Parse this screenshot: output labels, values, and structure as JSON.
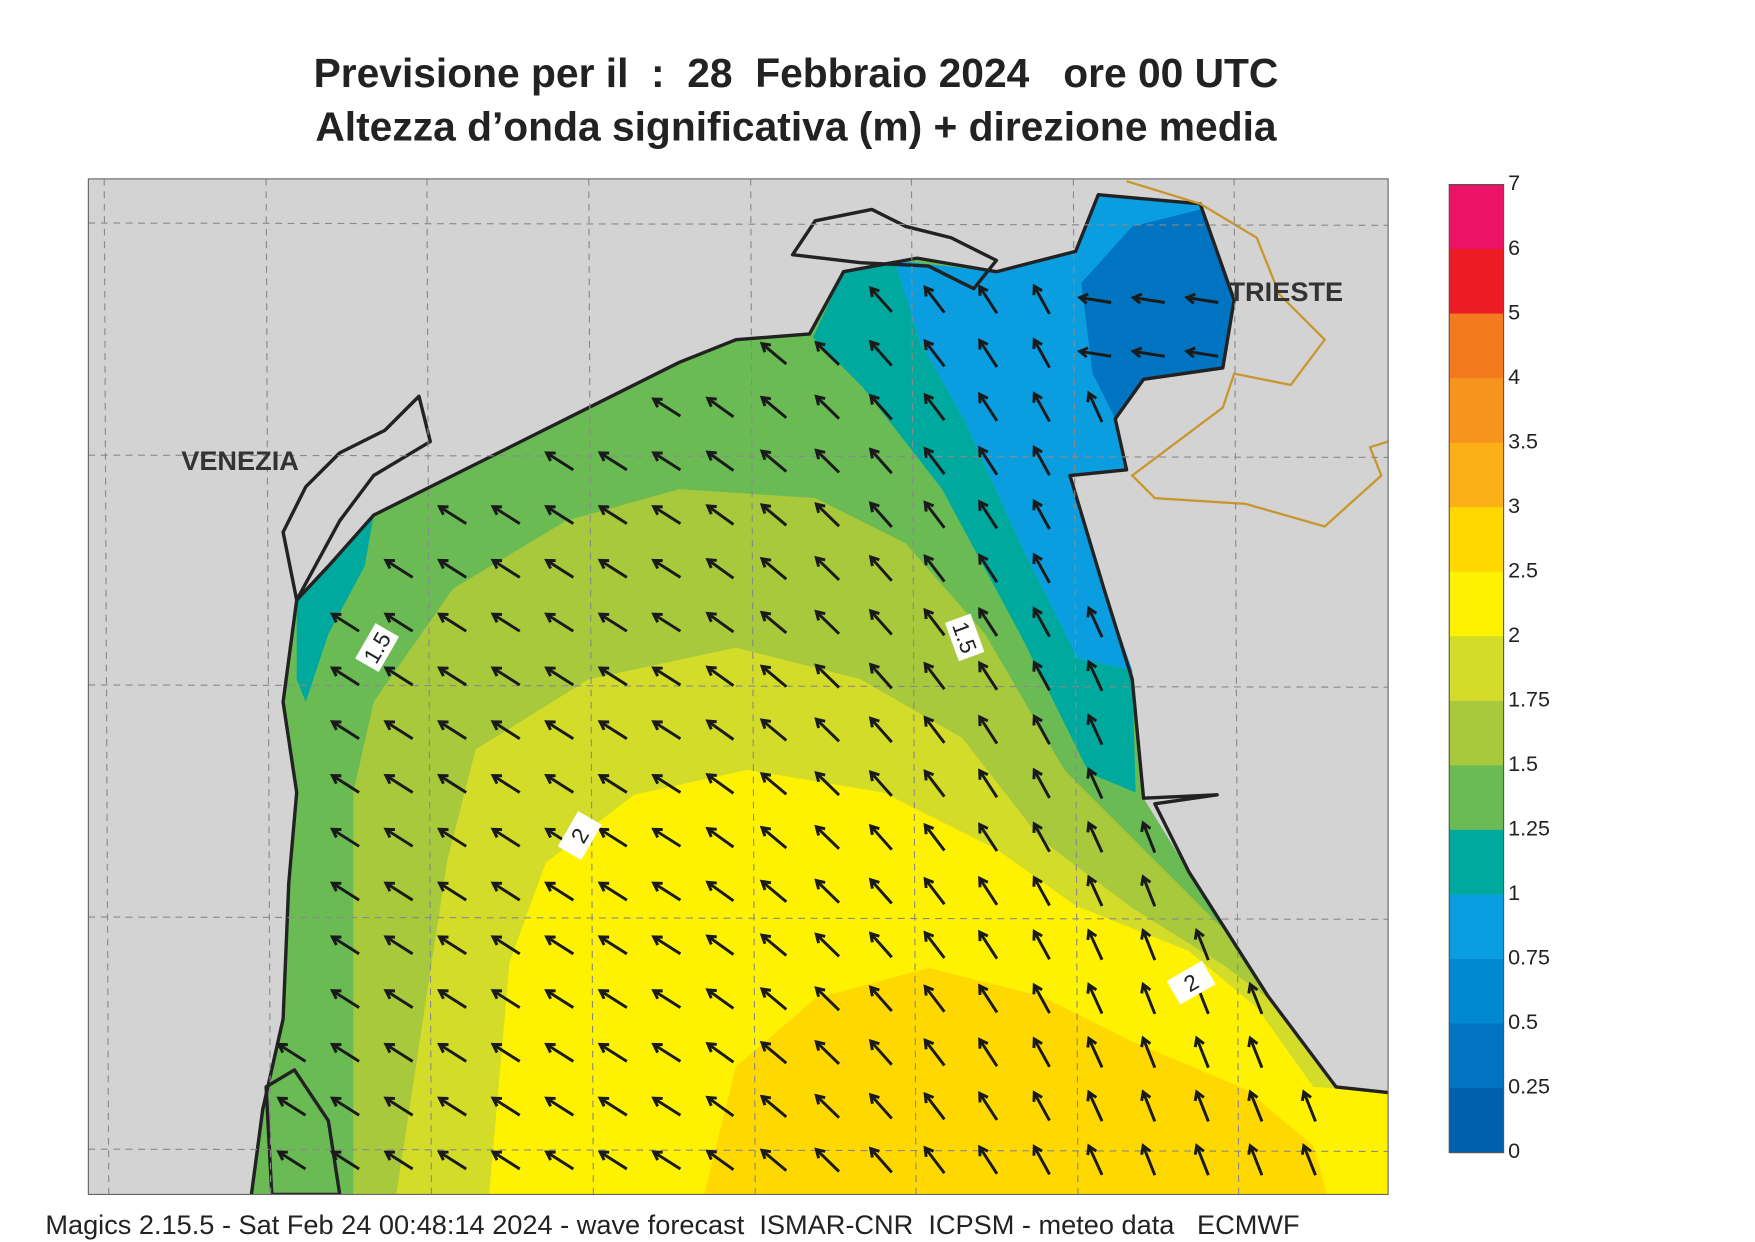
{
  "header": {
    "title_line1": "Previsione per il  :  28  Febbraio 2024   ore 00 UTC",
    "title_line2": "Altezza d’onda significativa (m) + direzione media"
  },
  "map": {
    "place_labels": [
      "VENEZIA",
      "TRIESTE"
    ],
    "contour_labels": [
      "1.5",
      "1.5",
      "2",
      "2"
    ]
  },
  "colorbar": {
    "labels": [
      "7",
      "6",
      "5",
      "4",
      "3.5",
      "3",
      "2.5",
      "2",
      "1.75",
      "1.5",
      "1.25",
      "1",
      "0.75",
      "0.5",
      "0.25",
      "0"
    ],
    "colors": [
      "#ec1265",
      "#ed1c24",
      "#f47a20",
      "#f7941d",
      "#fbb017",
      "#ffd800",
      "#fff200",
      "#d4dc2a",
      "#a8c93c",
      "#6bbb55",
      "#00a99d",
      "#0a9ee0",
      "#0088d0",
      "#0074c0",
      "#0060b0"
    ]
  },
  "footer": "Magics 2.15.5 - Sat Feb 24 00:48:14 2024 - wave forecast  ISMAR-CNR  ICPSM - meteo data   ECMWF"
}
